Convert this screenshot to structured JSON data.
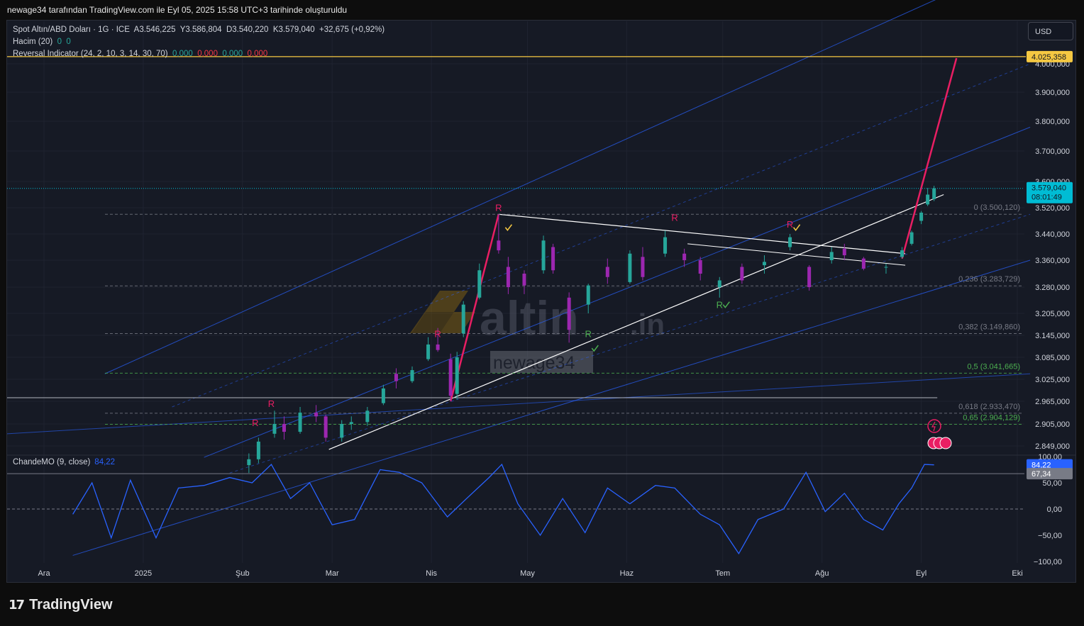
{
  "caption": "newage34 tarafından TradingView.com ile Eyl 05, 2025 15:58 UTC+3 tarihinde oluşturuldu",
  "legend": {
    "symbol": "Spot Altın/ABD Doları · 1G · ICE",
    "open_label": "A",
    "open": "3.546,225",
    "high_label": "Y",
    "high": "3.586,804",
    "low_label": "D",
    "low": "3.540,220",
    "close_label": "K",
    "close": "3.579,040",
    "change": "+32,675 (+0,92%)",
    "volume": "Hacim (20)",
    "volume_v1": "0",
    "volume_v2": "0",
    "indicator": "Reversal Indicator (24, 2, 10, 3, 14, 30, 70)",
    "ind_v1": "0,000",
    "ind_v2": "0,000",
    "ind_v3": "0,000",
    "ind_v4": "0,000"
  },
  "currency_button": "USD",
  "cmo_legend": {
    "name": "ChandeMO (9, close)",
    "value": "84,22"
  },
  "watermark": {
    "brand": "altin",
    "brand_suffix": ".in",
    "user": "newage34"
  },
  "footer": {
    "brand": "TradingView"
  },
  "colors": {
    "background": "#161a25",
    "up": "#26a69a",
    "down": "#9c27b0",
    "accent_pink": "#e91e63",
    "channel": "#2962ff",
    "price_tag": "#00bcd4",
    "level_tag": "#f5c842"
  },
  "chart_data": {
    "type": "candlestick",
    "title": "Spot Altın/ABD Doları · 1G · ICE",
    "x_ticks": [
      "Ara",
      "2025",
      "Şub",
      "Mar",
      "Nis",
      "May",
      "Haz",
      "Tem",
      "Ağu",
      "Eyl",
      "Eki"
    ],
    "y_ticks": [
      "4.000,000",
      "3.900,000",
      "3.800,000",
      "3.700,000",
      "3.600,000",
      "3.520,000",
      "3.440,000",
      "3.360,000",
      "3.280,000",
      "3.205,000",
      "3.145,000",
      "3.085,000",
      "3.025,000",
      "2.965,000",
      "2.905,000",
      "2.849,000"
    ],
    "ylim": [
      2830,
      4060
    ],
    "last_price": "3.579,040",
    "countdown": "08:01:49",
    "top_level": "4.025,358",
    "fib_levels": [
      {
        "label": "0 (3.500,120)",
        "value": 3500.12
      },
      {
        "label": "0,236 (3.283,729)",
        "value": 3283.729
      },
      {
        "label": "0,382 (3.149,860)",
        "value": 3149.86
      },
      {
        "label": "0,5 (3.041,665)",
        "value": 3041.665
      },
      {
        "label": "0,618 (2.933,470)",
        "value": 2933.47
      },
      {
        "label": "0,65 (2.904,129)",
        "value": 2904.129
      }
    ],
    "ohlc": [
      {
        "d": "2025-02-03",
        "o": 2800,
        "h": 2830,
        "l": 2780,
        "c": 2815
      },
      {
        "d": "2025-02-06",
        "o": 2815,
        "h": 2870,
        "l": 2805,
        "c": 2860
      },
      {
        "d": "2025-02-11",
        "o": 2880,
        "h": 2940,
        "l": 2870,
        "c": 2905
      },
      {
        "d": "2025-02-14",
        "o": 2905,
        "h": 2925,
        "l": 2865,
        "c": 2885
      },
      {
        "d": "2025-02-19",
        "o": 2885,
        "h": 2950,
        "l": 2880,
        "c": 2935
      },
      {
        "d": "2025-02-24",
        "o": 2935,
        "h": 2955,
        "l": 2910,
        "c": 2925
      },
      {
        "d": "2025-02-27",
        "o": 2925,
        "h": 2930,
        "l": 2860,
        "c": 2870
      },
      {
        "d": "2025-03-04",
        "o": 2870,
        "h": 2915,
        "l": 2860,
        "c": 2905
      },
      {
        "d": "2025-03-07",
        "o": 2905,
        "h": 2925,
        "l": 2890,
        "c": 2910
      },
      {
        "d": "2025-03-12",
        "o": 2910,
        "h": 2950,
        "l": 2900,
        "c": 2940
      },
      {
        "d": "2025-03-17",
        "o": 2960,
        "h": 3010,
        "l": 2955,
        "c": 3000
      },
      {
        "d": "2025-03-21",
        "o": 3040,
        "h": 3055,
        "l": 3000,
        "c": 3020
      },
      {
        "d": "2025-03-26",
        "o": 3020,
        "h": 3060,
        "l": 3015,
        "c": 3050
      },
      {
        "d": "2025-03-31",
        "o": 3080,
        "h": 3140,
        "l": 3075,
        "c": 3120
      },
      {
        "d": "2025-04-03",
        "o": 3120,
        "h": 3165,
        "l": 3100,
        "c": 3105
      },
      {
        "d": "2025-04-07",
        "o": 3080,
        "h": 3095,
        "l": 2965,
        "c": 2980
      },
      {
        "d": "2025-04-09",
        "o": 2985,
        "h": 3100,
        "l": 2970,
        "c": 3085
      },
      {
        "d": "2025-04-11",
        "o": 3150,
        "h": 3240,
        "l": 3140,
        "c": 3230
      },
      {
        "d": "2025-04-16",
        "o": 3250,
        "h": 3350,
        "l": 3245,
        "c": 3330
      },
      {
        "d": "2025-04-22",
        "o": 3420,
        "h": 3500,
        "l": 3380,
        "c": 3390
      },
      {
        "d": "2025-04-25",
        "o": 3340,
        "h": 3370,
        "l": 3260,
        "c": 3280
      },
      {
        "d": "2025-04-30",
        "o": 3320,
        "h": 3330,
        "l": 3260,
        "c": 3285
      },
      {
        "d": "2025-05-06",
        "o": 3330,
        "h": 3435,
        "l": 3320,
        "c": 3420
      },
      {
        "d": "2025-05-09",
        "o": 3400,
        "h": 3410,
        "l": 3320,
        "c": 3330
      },
      {
        "d": "2025-05-14",
        "o": 3250,
        "h": 3265,
        "l": 3125,
        "c": 3160
      },
      {
        "d": "2025-05-20",
        "o": 3230,
        "h": 3290,
        "l": 3205,
        "c": 3285
      },
      {
        "d": "2025-05-26",
        "o": 3340,
        "h": 3365,
        "l": 3290,
        "c": 3310
      },
      {
        "d": "2025-06-02",
        "o": 3295,
        "h": 3390,
        "l": 3290,
        "c": 3380
      },
      {
        "d": "2025-06-06",
        "o": 3370,
        "h": 3400,
        "l": 3300,
        "c": 3310
      },
      {
        "d": "2025-06-13",
        "o": 3380,
        "h": 3450,
        "l": 3370,
        "c": 3430
      },
      {
        "d": "2025-06-19",
        "o": 3380,
        "h": 3395,
        "l": 3340,
        "c": 3360
      },
      {
        "d": "2025-06-24",
        "o": 3360,
        "h": 3370,
        "l": 3300,
        "c": 3320
      },
      {
        "d": "2025-06-30",
        "o": 3280,
        "h": 3310,
        "l": 3250,
        "c": 3300
      },
      {
        "d": "2025-07-07",
        "o": 3340,
        "h": 3350,
        "l": 3290,
        "c": 3300
      },
      {
        "d": "2025-07-14",
        "o": 3345,
        "h": 3375,
        "l": 3320,
        "c": 3355
      },
      {
        "d": "2025-07-22",
        "o": 3400,
        "h": 3440,
        "l": 3390,
        "c": 3430
      },
      {
        "d": "2025-07-28",
        "o": 3340,
        "h": 3345,
        "l": 3270,
        "c": 3280
      },
      {
        "d": "2025-08-04",
        "o": 3360,
        "h": 3400,
        "l": 3350,
        "c": 3385
      },
      {
        "d": "2025-08-08",
        "o": 3395,
        "h": 3410,
        "l": 3360,
        "c": 3375
      },
      {
        "d": "2025-08-14",
        "o": 3365,
        "h": 3370,
        "l": 3330,
        "c": 3335
      },
      {
        "d": "2025-08-21",
        "o": 3340,
        "h": 3350,
        "l": 3320,
        "c": 3340
      },
      {
        "d": "2025-08-26",
        "o": 3370,
        "h": 3400,
        "l": 3365,
        "c": 3390
      },
      {
        "d": "2025-08-29",
        "o": 3410,
        "h": 3450,
        "l": 3405,
        "c": 3445
      },
      {
        "d": "2025-09-01",
        "o": 3480,
        "h": 3510,
        "l": 3470,
        "c": 3505
      },
      {
        "d": "2025-09-03",
        "o": 3530,
        "h": 3580,
        "l": 3525,
        "c": 3560
      },
      {
        "d": "2025-09-05",
        "o": 3546.225,
        "h": 3586.804,
        "l": 3540.22,
        "c": 3579.04
      }
    ],
    "cmo": {
      "name": "ChandeMO (9, close)",
      "y_ticks": [
        "100,00",
        "50,00",
        "0,00",
        "−50,00",
        "−100,00"
      ],
      "ylim": [
        -100,
        100
      ],
      "reference_level": "67,34",
      "last_value": "84,22",
      "values": [
        {
          "d": "2024-12-10",
          "v": -10
        },
        {
          "d": "2024-12-16",
          "v": 50
        },
        {
          "d": "2024-12-22",
          "v": -55
        },
        {
          "d": "2024-12-28",
          "v": 55
        },
        {
          "d": "2025-01-05",
          "v": -55
        },
        {
          "d": "2025-01-12",
          "v": 40
        },
        {
          "d": "2025-01-20",
          "v": 45
        },
        {
          "d": "2025-01-28",
          "v": 60
        },
        {
          "d": "2025-02-04",
          "v": 50
        },
        {
          "d": "2025-02-10",
          "v": 85
        },
        {
          "d": "2025-02-16",
          "v": 20
        },
        {
          "d": "2025-02-22",
          "v": 50
        },
        {
          "d": "2025-03-01",
          "v": -30
        },
        {
          "d": "2025-03-08",
          "v": -20
        },
        {
          "d": "2025-03-16",
          "v": 75
        },
        {
          "d": "2025-03-22",
          "v": 70
        },
        {
          "d": "2025-03-29",
          "v": 50
        },
        {
          "d": "2025-04-06",
          "v": -15
        },
        {
          "d": "2025-04-12",
          "v": 20
        },
        {
          "d": "2025-04-19",
          "v": 60
        },
        {
          "d": "2025-04-23",
          "v": 85
        },
        {
          "d": "2025-04-28",
          "v": 10
        },
        {
          "d": "2025-05-05",
          "v": -50
        },
        {
          "d": "2025-05-12",
          "v": 20
        },
        {
          "d": "2025-05-19",
          "v": -45
        },
        {
          "d": "2025-05-26",
          "v": 40
        },
        {
          "d": "2025-06-02",
          "v": 10
        },
        {
          "d": "2025-06-10",
          "v": 45
        },
        {
          "d": "2025-06-16",
          "v": 40
        },
        {
          "d": "2025-06-24",
          "v": -10
        },
        {
          "d": "2025-06-30",
          "v": -30
        },
        {
          "d": "2025-07-06",
          "v": -85
        },
        {
          "d": "2025-07-12",
          "v": -20
        },
        {
          "d": "2025-07-20",
          "v": 0
        },
        {
          "d": "2025-07-27",
          "v": 70
        },
        {
          "d": "2025-08-02",
          "v": -5
        },
        {
          "d": "2025-08-08",
          "v": 30
        },
        {
          "d": "2025-08-14",
          "v": -20
        },
        {
          "d": "2025-08-20",
          "v": -40
        },
        {
          "d": "2025-08-25",
          "v": 10
        },
        {
          "d": "2025-08-29",
          "v": 40
        },
        {
          "d": "2025-09-02",
          "v": 85
        },
        {
          "d": "2025-09-05",
          "v": 84.22
        }
      ]
    }
  }
}
